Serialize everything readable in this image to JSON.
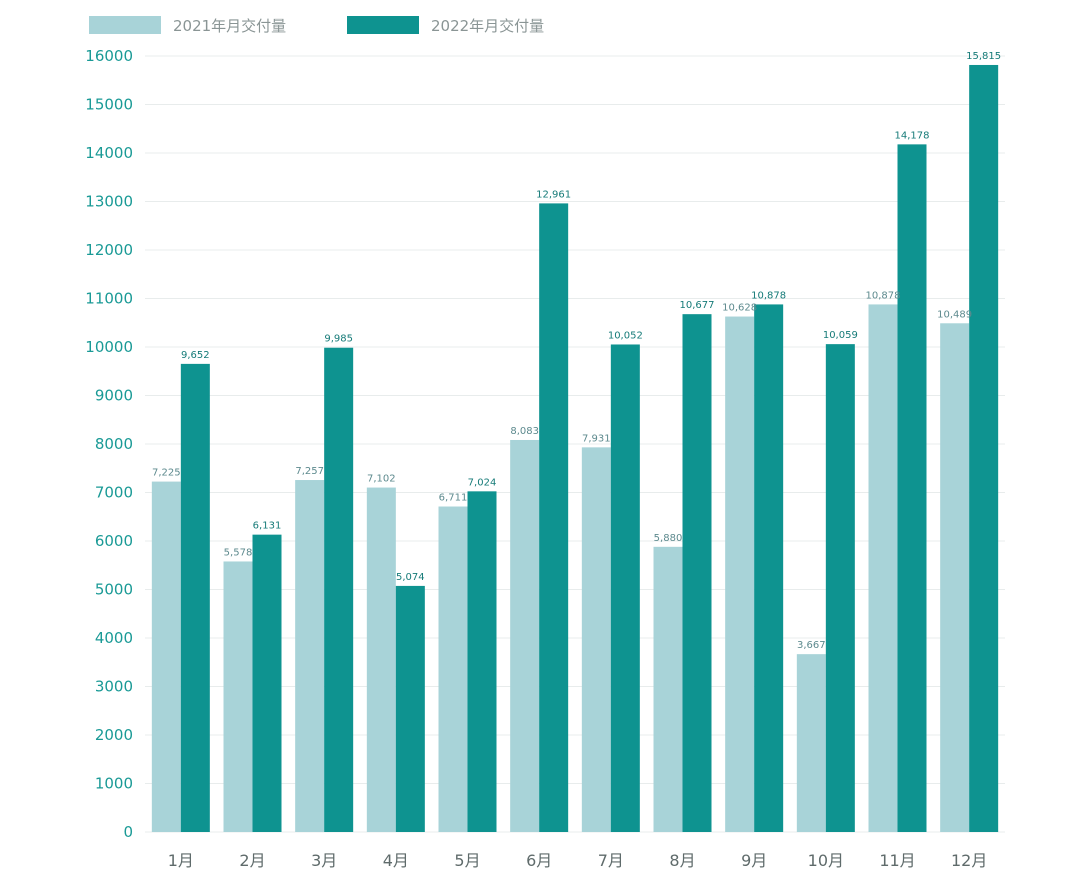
{
  "chart_data": {
    "type": "bar",
    "title": "",
    "xlabel": "",
    "ylabel": "",
    "ylim": [
      0,
      16000
    ],
    "yticks": [
      0,
      1000,
      2000,
      3000,
      4000,
      5000,
      6000,
      7000,
      8000,
      9000,
      10000,
      11000,
      12000,
      13000,
      14000,
      15000,
      16000
    ],
    "categories": [
      "1月",
      "2月",
      "3月",
      "4月",
      "5月",
      "6月",
      "7月",
      "8月",
      "9月",
      "10月",
      "11月",
      "12月"
    ],
    "series": [
      {
        "name": "2021年月交付量",
        "color": "#a8d3d8",
        "values": [
          7225,
          5578,
          7257,
          7102,
          6711,
          8083,
          7931,
          5880,
          10628,
          3667,
          10878,
          10489
        ],
        "labels": [
          "7,225",
          "5,578",
          "7,257",
          "7,102",
          "6,711",
          "8,083",
          "7,931",
          "5,880",
          "10,628",
          "3,667",
          "10,878",
          "10,489"
        ]
      },
      {
        "name": "2022年月交付量",
        "color": "#0e9390",
        "values": [
          9652,
          6131,
          9985,
          5074,
          7024,
          12961,
          10052,
          10677,
          10878,
          10059,
          14178,
          15815
        ],
        "labels": [
          "9,652",
          "6,131",
          "9,985",
          "5,074",
          "7,024",
          "12,961",
          "10,052",
          "10,677",
          "10,878",
          "10,059",
          "14,178",
          "15,815"
        ]
      }
    ],
    "legend_position": "top-left",
    "grid": true
  }
}
